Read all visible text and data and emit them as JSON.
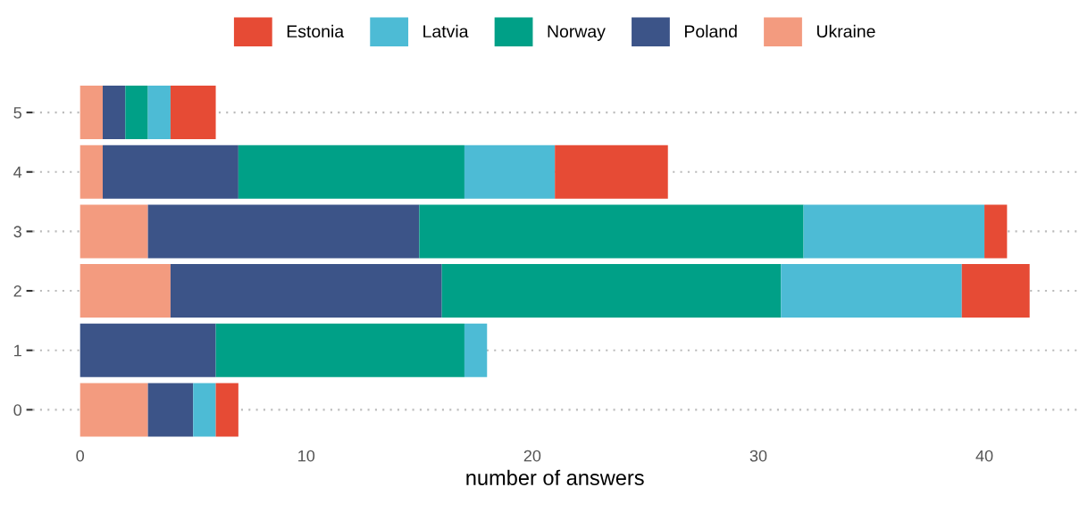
{
  "chart_data": {
    "type": "bar",
    "orientation": "horizontal",
    "stacked": true,
    "xlabel": "number of answers",
    "categories": [
      "5",
      "4",
      "3",
      "2",
      "1",
      "0"
    ],
    "series": [
      {
        "name": "Ukraine",
        "color": "#f39b7f",
        "values": [
          1,
          1,
          3,
          4,
          0,
          3
        ]
      },
      {
        "name": "Poland",
        "color": "#3c5488",
        "values": [
          1,
          6,
          12,
          12,
          6,
          2
        ]
      },
      {
        "name": "Norway",
        "color": "#00a087",
        "values": [
          1,
          10,
          17,
          15,
          11,
          0
        ]
      },
      {
        "name": "Latvia",
        "color": "#4dbbd5",
        "values": [
          1,
          4,
          8,
          8,
          1,
          1
        ]
      },
      {
        "name": "Estonia",
        "color": "#e64b35",
        "values": [
          2,
          5,
          1,
          3,
          0,
          1
        ]
      }
    ],
    "xlim": [
      -2.1,
      44.1
    ],
    "xticks": [
      0,
      10,
      20,
      30,
      40
    ],
    "grid": "y",
    "line_style": "dotted",
    "legend": "top"
  }
}
